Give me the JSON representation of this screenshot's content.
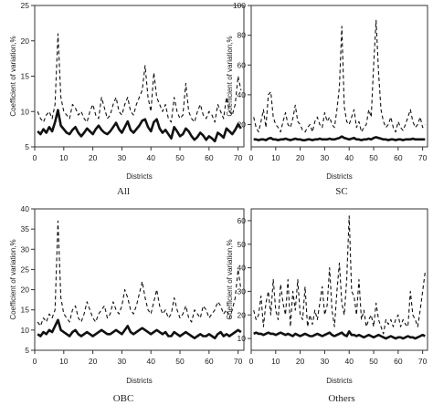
{
  "figure": {
    "panels": [
      {
        "caption": "All"
      },
      {
        "caption": "SC"
      },
      {
        "caption": "OBC"
      },
      {
        "caption": "Others"
      }
    ]
  },
  "chart_data": [
    {
      "type": "line",
      "caption": "All",
      "xlabel": "Districts",
      "ylabel": "Coefficient of variation,%",
      "xlim": [
        0,
        72
      ],
      "ylim": [
        5,
        25
      ],
      "xticks": [
        0,
        10,
        20,
        30,
        40,
        50,
        60,
        70
      ],
      "yticks": [
        5,
        10,
        15,
        20,
        25
      ],
      "grid": false,
      "x": [
        1,
        2,
        3,
        4,
        5,
        6,
        7,
        8,
        9,
        10,
        11,
        12,
        13,
        14,
        15,
        16,
        17,
        18,
        19,
        20,
        21,
        22,
        23,
        24,
        25,
        26,
        27,
        28,
        29,
        30,
        31,
        32,
        33,
        34,
        35,
        36,
        37,
        38,
        39,
        40,
        41,
        42,
        43,
        44,
        45,
        46,
        47,
        48,
        49,
        50,
        51,
        52,
        53,
        54,
        55,
        56,
        57,
        58,
        59,
        60,
        61,
        62,
        63,
        64,
        65,
        66,
        67,
        68,
        69,
        70,
        71
      ],
      "series": [
        {
          "style": "dashed",
          "values": [
            10,
            9,
            8.5,
            9.5,
            10,
            9,
            11,
            21,
            12,
            10,
            9.5,
            9,
            11,
            10.5,
            9.5,
            10,
            9,
            8.5,
            10,
            11,
            9.5,
            9,
            12,
            10.5,
            9,
            9.5,
            11,
            12,
            10,
            9.5,
            11,
            12,
            10,
            9.5,
            11,
            12,
            13,
            16.5,
            12,
            10,
            15.5,
            12,
            11,
            10,
            11,
            9,
            8.5,
            12,
            10,
            9,
            9.5,
            14,
            10,
            9,
            8.5,
            10,
            11,
            9.5,
            9,
            10,
            9.5,
            8.5,
            11,
            10,
            9,
            12,
            10,
            9.5,
            11,
            15,
            13
          ]
        },
        {
          "style": "solid",
          "values": [
            7.2,
            6.8,
            7.5,
            7,
            7.8,
            7.2,
            8.5,
            10.2,
            8,
            7.5,
            7,
            6.8,
            7.4,
            7.8,
            7,
            6.5,
            7,
            7.6,
            7.2,
            6.8,
            7.5,
            8,
            7.4,
            7,
            6.8,
            7.2,
            7.8,
            8.4,
            7.5,
            7,
            7.8,
            8.6,
            7.4,
            7,
            7.5,
            8,
            8.7,
            8.9,
            7.8,
            7.2,
            8.5,
            8.9,
            7.6,
            7,
            7.4,
            6.8,
            6.2,
            7.8,
            7.2,
            6.5,
            6.8,
            7.6,
            7.2,
            6.5,
            6,
            6.4,
            7,
            6.6,
            6,
            6.5,
            6.2,
            5.8,
            7,
            6.7,
            6.3,
            7.6,
            7.2,
            6.8,
            7.4,
            8.2,
            7.6
          ]
        }
      ]
    },
    {
      "type": "line",
      "caption": "SC",
      "xlabel": "Districts",
      "ylabel": "Coefficient of variation,%",
      "xlim": [
        0,
        72
      ],
      "ylim": [
        5,
        100
      ],
      "xticks": [
        0,
        10,
        20,
        30,
        40,
        50,
        60,
        70
      ],
      "yticks": [
        20,
        40,
        60,
        80,
        100
      ],
      "grid": false,
      "x": [
        1,
        2,
        3,
        4,
        5,
        6,
        7,
        8,
        9,
        10,
        11,
        12,
        13,
        14,
        15,
        16,
        17,
        18,
        19,
        20,
        21,
        22,
        23,
        24,
        25,
        26,
        27,
        28,
        29,
        30,
        31,
        32,
        33,
        34,
        35,
        36,
        37,
        38,
        39,
        40,
        41,
        42,
        43,
        44,
        45,
        46,
        47,
        48,
        49,
        50,
        51,
        52,
        53,
        54,
        55,
        56,
        57,
        58,
        59,
        60,
        61,
        62,
        63,
        64,
        65,
        66,
        67,
        68,
        69,
        70,
        71
      ],
      "series": [
        {
          "style": "dashed",
          "values": [
            25,
            18,
            15,
            22,
            30,
            18,
            40,
            42,
            25,
            20,
            18,
            15,
            22,
            28,
            20,
            18,
            24,
            33,
            22,
            20,
            16,
            15,
            18,
            20,
            15,
            22,
            25,
            20,
            18,
            28,
            22,
            25,
            20,
            18,
            30,
            45,
            86,
            32,
            22,
            20,
            25,
            30,
            18,
            22,
            15,
            18,
            20,
            30,
            25,
            60,
            90,
            55,
            30,
            22,
            18,
            20,
            25,
            18,
            15,
            22,
            18,
            16,
            20,
            25,
            30,
            22,
            18,
            20,
            25,
            18,
            20
          ]
        },
        {
          "style": "solid",
          "values": [
            10,
            10,
            9.5,
            10,
            10,
            9.5,
            10.5,
            11,
            10,
            10,
            9.5,
            10,
            10,
            10.5,
            10,
            9.5,
            10,
            10.5,
            10,
            10,
            9.5,
            9.5,
            10,
            10,
            9.5,
            10,
            10,
            10.5,
            10,
            10,
            10,
            10.5,
            10,
            10,
            10.5,
            11,
            12,
            11,
            10.5,
            10,
            10.5,
            11,
            10,
            10,
            9.5,
            10,
            10,
            10.5,
            10,
            11,
            11.5,
            11,
            10.5,
            10,
            10,
            9.5,
            10,
            10,
            9.5,
            10,
            10,
            9.5,
            10,
            10,
            10,
            10.5,
            10,
            10,
            10,
            10,
            10
          ]
        }
      ]
    },
    {
      "type": "line",
      "caption": "OBC",
      "xlabel": "Districts",
      "ylabel": "Coefficient of variation,%",
      "xlim": [
        0,
        72
      ],
      "ylim": [
        5,
        40
      ],
      "xticks": [
        0,
        10,
        20,
        30,
        40,
        50,
        60,
        70
      ],
      "yticks": [
        5,
        10,
        15,
        20,
        25,
        30,
        35,
        40
      ],
      "grid": false,
      "x": [
        1,
        2,
        3,
        4,
        5,
        6,
        7,
        8,
        9,
        10,
        11,
        12,
        13,
        14,
        15,
        16,
        17,
        18,
        19,
        20,
        21,
        22,
        23,
        24,
        25,
        26,
        27,
        28,
        29,
        30,
        31,
        32,
        33,
        34,
        35,
        36,
        37,
        38,
        39,
        40,
        41,
        42,
        43,
        44,
        45,
        46,
        47,
        48,
        49,
        50,
        51,
        52,
        53,
        54,
        55,
        56,
        57,
        58,
        59,
        60,
        61,
        62,
        63,
        64,
        65,
        66,
        67,
        68,
        69,
        70,
        71
      ],
      "series": [
        {
          "style": "dashed",
          "values": [
            12,
            11,
            13,
            12,
            14,
            13,
            15,
            37,
            18,
            14,
            13,
            12,
            15,
            16,
            13,
            12,
            14,
            17,
            15,
            13,
            12,
            14,
            15,
            16,
            13,
            14,
            17,
            15,
            14,
            16,
            20,
            18,
            15,
            14,
            16,
            19,
            22,
            18,
            15,
            14,
            17,
            20,
            16,
            14,
            15,
            13,
            14,
            18,
            15,
            13,
            14,
            16,
            13,
            12,
            15,
            14,
            13,
            16,
            15,
            13,
            14,
            15,
            17,
            16,
            14,
            15,
            13,
            15,
            18,
            25,
            20
          ]
        },
        {
          "style": "solid",
          "values": [
            9,
            8.5,
            9.5,
            9,
            10,
            9.5,
            11,
            12.5,
            10,
            9.5,
            9,
            8.5,
            9.5,
            10,
            9,
            8.5,
            9,
            9.5,
            9,
            8.5,
            9,
            9.5,
            10,
            9.5,
            9,
            9,
            9.5,
            10,
            9.5,
            9,
            10,
            11,
            9.5,
            9,
            9.5,
            10,
            10.5,
            10,
            9.5,
            9,
            9.5,
            10,
            9.5,
            9,
            9.5,
            8.5,
            8.5,
            9.5,
            9,
            8.5,
            9,
            9.5,
            9,
            8.5,
            8,
            8.5,
            9,
            8.5,
            8.5,
            9,
            8.5,
            8,
            9,
            9.5,
            8.5,
            9,
            8.5,
            9,
            9.5,
            10,
            9.5
          ]
        }
      ]
    },
    {
      "type": "line",
      "caption": "Others",
      "xlabel": "Districts",
      "ylabel": "Coefficient of variation,%",
      "xlim": [
        0,
        72
      ],
      "ylim": [
        5,
        65
      ],
      "xticks": [
        0,
        10,
        20,
        30,
        40,
        50,
        60,
        70
      ],
      "yticks": [
        10,
        20,
        30,
        40,
        50,
        60
      ],
      "grid": false,
      "x": [
        1,
        2,
        3,
        4,
        5,
        6,
        7,
        8,
        9,
        10,
        11,
        12,
        13,
        14,
        15,
        16,
        17,
        18,
        19,
        20,
        21,
        22,
        23,
        24,
        25,
        26,
        27,
        28,
        29,
        30,
        31,
        32,
        33,
        34,
        35,
        36,
        37,
        38,
        39,
        40,
        41,
        42,
        43,
        44,
        45,
        46,
        47,
        48,
        49,
        50,
        51,
        52,
        53,
        54,
        55,
        56,
        57,
        58,
        59,
        60,
        61,
        62,
        63,
        64,
        65,
        66,
        67,
        68,
        69,
        70,
        71
      ],
      "series": [
        {
          "style": "dashed",
          "values": [
            22,
            18,
            20,
            28,
            15,
            25,
            30,
            20,
            35,
            22,
            18,
            33,
            25,
            20,
            35,
            15,
            30,
            22,
            35,
            20,
            18,
            32,
            15,
            20,
            16,
            22,
            18,
            25,
            32,
            20,
            24,
            40,
            22,
            15,
            30,
            42,
            25,
            20,
            35,
            62,
            30,
            28,
            20,
            35,
            18,
            22,
            15,
            18,
            20,
            15,
            25,
            18,
            15,
            12,
            18,
            16,
            18,
            15,
            18,
            20,
            15,
            18,
            16,
            15,
            30,
            20,
            18,
            15,
            22,
            30,
            38
          ]
        },
        {
          "style": "solid",
          "values": [
            12,
            12.5,
            12,
            12,
            11.5,
            12,
            12.5,
            12,
            12,
            11.5,
            12,
            12.5,
            12,
            11.5,
            12,
            11.5,
            11,
            12,
            11.5,
            11,
            11.5,
            12,
            11.5,
            11,
            11,
            11.5,
            12,
            11.5,
            11,
            11.5,
            12,
            12.5,
            11.5,
            11,
            11.5,
            12,
            12.5,
            11.5,
            11,
            13,
            11.5,
            11.5,
            11,
            11.5,
            11,
            10.5,
            11,
            11.5,
            11,
            10.5,
            11,
            11.5,
            11,
            10.5,
            10,
            10.5,
            11,
            10.5,
            10,
            10.5,
            10.5,
            10,
            10.5,
            11,
            10.5,
            10.5,
            10,
            10.5,
            11,
            11.5,
            11
          ]
        }
      ]
    }
  ]
}
